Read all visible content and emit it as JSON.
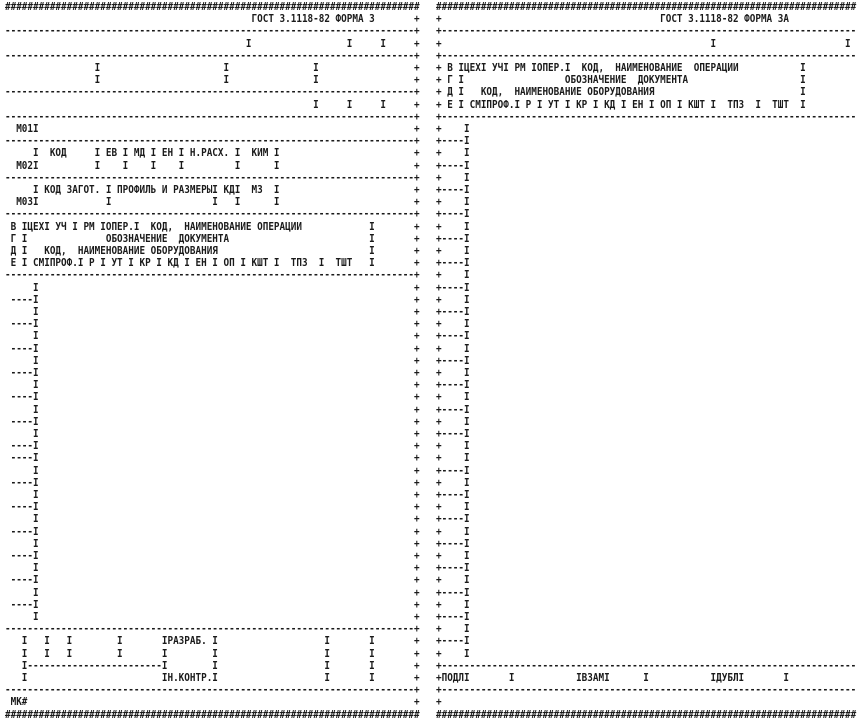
{
  "edge_char": "+",
  "left_form": {
    "title": "ГОСТ 3.1118-82 ФОРМА 3",
    "lines": [
      "##########################################################################",
      "                                            ГОСТ 3.1118-82 ФОРМА 3",
      "-------------------------------------------------------------------------",
      "                                           I                 I     I",
      "-------------------------------------------------------------------------",
      "                I                      I               I",
      "                I                      I               I",
      "-------------------------------------------------------------------------",
      "                                                       I     I     I",
      "-------------------------------------------------------------------------",
      "  М01I",
      "-------------------------------------------------------------------------",
      "     I  КОД     I ЕВ I МД I ЕН I Н.РАСХ. I  КИМ I",
      "  М02I          I    I    I    I         I      I",
      "-------------------------------------------------------------------------",
      "     I КОД ЗАГОТ. I ПРОФИЛЬ И РАЗМЕРЫI КДI  МЗ  I",
      "  М03I            I                  I   I      I",
      "-------------------------------------------------------------------------",
      " В IЦЕХI УЧ I РМ IОПЕР.I  КОД,  НАИМЕНОВАНИЕ ОПЕРАЦИИ            I",
      " Г I              ОБОЗНАЧЕНИЕ  ДОКУМЕНТА                         I",
      " Д I   КОД,  НАИМЕНОВАНИЕ ОБОРУДОВАНИЯ                           I",
      " Е I СМIПРОФ.I Р I УТ I КР I КД I ЕН I ОП I КШТ I  ТПЗ  I  ТШТ   I",
      "-------------------------------------------------------------------------",
      "     I",
      " ----I",
      "     I",
      " ----I",
      "     I",
      " ----I",
      "     I",
      " ----I",
      "     I",
      " ----I",
      "     I",
      " ----I",
      "     I",
      " ----I",
      " ----I",
      "     I",
      " ----I",
      "     I",
      " ----I",
      "     I",
      " ----I",
      "     I",
      " ----I",
      "     I",
      " ----I",
      "     I",
      " ----I",
      "     I",
      "-------------------------------------------------------------------------",
      "   I   I   I        I       IРАЗРАБ. I                   I       I",
      "   I   I   I        I       I        I                   I       I",
      "   I------------------------I        I                   I       I",
      "   I                        IН.КОНТР.I                   I       I",
      "-------------------------------------------------------------------------",
      " МК#",
      "##########################################################################"
    ]
  },
  "right_form": {
    "title": "ГОСТ 3.1118-82 ФОРМА 3А",
    "lines": [
      "###########################################################################",
      "+                                       ГОСТ 3.1118-82 ФОРМА 3А",
      "+--------------------------------------------------------------------------",
      "+                                                I                       I",
      "+--------------------------------------------------------------------------",
      "+ В IЦЕХI УЧI РМ IОПЕР.I  КОД,  НАИМЕНОВАНИЕ  ОПЕРАЦИИ           I",
      "+ Г I                  ОБОЗНАЧЕНИЕ  ДОКУМЕНТА                    I",
      "+ Д I   КОД,  НАИМЕНОВАНИЕ ОБОРУДОВАНИЯ                          I",
      "+ Е I СМIПРОФ.I Р I УТ I КР I КД I ЕН I ОП I КШТ I  ТПЗ  I  ТШТ  I",
      "+--------------------------------------------------------------------------",
      "+    I",
      "+----I",
      "+    I",
      "+----I",
      "+    I",
      "+----I",
      "+    I",
      "+----I",
      "+    I",
      "+----I",
      "+    I",
      "+----I",
      "+    I",
      "+----I",
      "+    I",
      "+----I",
      "+    I",
      "+----I",
      "+    I",
      "+----I",
      "+    I",
      "+----I",
      "+    I",
      "+----I",
      "+    I",
      "+----I",
      "+    I",
      "+    I",
      "+----I",
      "+    I",
      "+----I",
      "+    I",
      "+----I",
      "+    I",
      "+----I",
      "+    I",
      "+----I",
      "+    I",
      "+----I",
      "+    I",
      "+----I",
      "+    I",
      "+----I",
      "+    I",
      "+--------------------------------------------------------------------------",
      "+ПОДЛI       I           IВЗАМI      I           IДУБЛI       I",
      "+--------------------------------------------------------------------------",
      "+",
      "###########################################################################"
    ]
  }
}
